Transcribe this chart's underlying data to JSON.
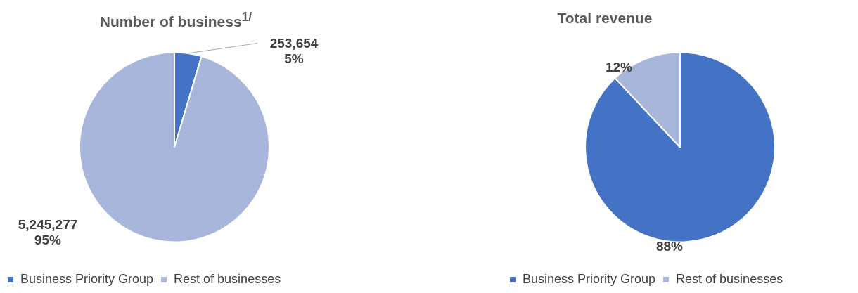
{
  "chart_data": [
    {
      "type": "pie",
      "title": "Number of business$^{1/}$",
      "categories": [
        "Business Priority Group",
        "Rest of businesses"
      ],
      "values": [
        253654,
        5245277
      ],
      "colors": [
        "#4472c4",
        "#a9b6dc"
      ],
      "value_labels": [
        "253,654\n5%",
        "5,245,277\n95%"
      ],
      "legend": "bottom"
    },
    {
      "type": "pie",
      "title": "Total revenue",
      "categories": [
        "Business Priority Group",
        "Rest of businesses"
      ],
      "values": [
        88,
        12
      ],
      "colors": [
        "#4472c4",
        "#a9b6dc"
      ],
      "value_labels": [
        "88%",
        "12%"
      ],
      "legend": "bottom"
    }
  ]
}
